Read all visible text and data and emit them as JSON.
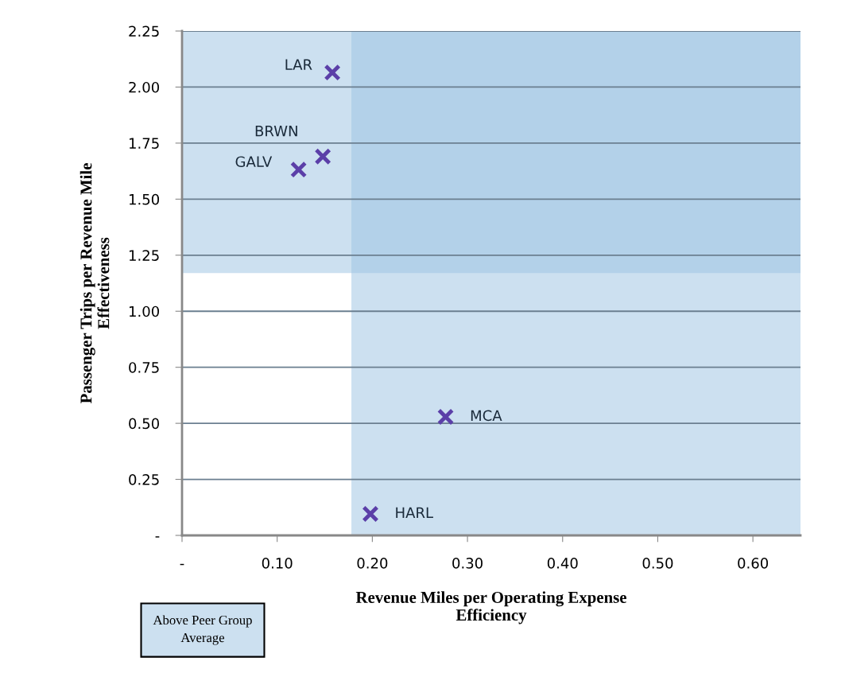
{
  "chart_data": {
    "type": "scatter",
    "xlabel": "Revenue Miles per Operating Expense\nEfficiency",
    "ylabel": "Passenger Trips per Revenue Mile\nEffectiveness",
    "x": [
      0.158,
      0.148,
      0.1225,
      0.277,
      0.198
    ],
    "series": [
      {
        "color": "#5b3fa8",
        "values": [
          2.065,
          1.69,
          1.632,
          0.529,
          0.096
        ]
      }
    ],
    "marker": "cross",
    "xlim": [
      0,
      0.65
    ],
    "xticks": [
      {
        "value": 0,
        "label": "-"
      },
      {
        "value": 0.1,
        "label": "0.10"
      },
      {
        "value": 0.2,
        "label": "0.20"
      },
      {
        "value": 0.3,
        "label": "0.30"
      },
      {
        "value": 0.4,
        "label": "0.40"
      },
      {
        "value": 0.5,
        "label": "0.50"
      },
      {
        "value": 0.6,
        "label": "0.60"
      }
    ],
    "ylim": [
      0,
      2.25
    ],
    "yticks": [
      {
        "value": 0,
        "label": "-"
      },
      {
        "value": 0.25,
        "label": "0.25"
      },
      {
        "value": 0.5,
        "label": "0.50"
      },
      {
        "value": 0.75,
        "label": "0.75"
      },
      {
        "value": 1.0,
        "label": "1.00"
      },
      {
        "value": 1.25,
        "label": "1.25"
      },
      {
        "value": 1.5,
        "label": "1.50"
      },
      {
        "value": 1.75,
        "label": "1.75"
      },
      {
        "value": 2.0,
        "label": "2.00"
      },
      {
        "value": 2.25,
        "label": "2.25"
      }
    ],
    "grid": "y",
    "bands": [
      {
        "axis": "x",
        "from": 0.178,
        "to": 0.65,
        "color": "#9ac1e1"
      },
      {
        "axis": "y",
        "from": 1.17,
        "to": 2.25,
        "color": "#9ac1e1"
      }
    ],
    "annotations": [
      {
        "text": "LAR",
        "x": 0.158,
        "y": 2.065
      },
      {
        "text": "BRWN",
        "x": 0.148,
        "y": 1.69
      },
      {
        "text": "GALV",
        "x": 0.1225,
        "y": 1.632
      },
      {
        "text": "MCA",
        "x": 0.277,
        "y": 0.529
      },
      {
        "text": "HARL",
        "x": 0.198,
        "y": 0.096
      },
      "Above Peer Group\nAverage"
    ]
  }
}
